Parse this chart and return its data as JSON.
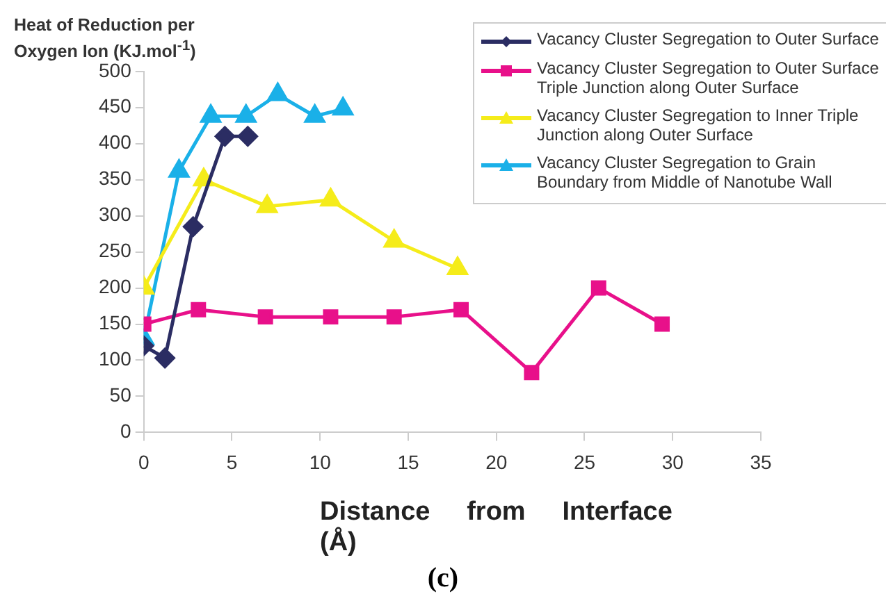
{
  "chart_data": {
    "type": "line",
    "ylabel": "Heat of Reduction per Oxygen  Ion (KJ.mol$^{-1}$)",
    "xlabel": "Distance     from     Interface (Å)",
    "annotations": [
      "(c)"
    ],
    "xlim": [
      0,
      35
    ],
    "xticks": [
      0,
      5,
      10,
      15,
      20,
      25,
      30,
      35
    ],
    "ylim": [
      0,
      500
    ],
    "yticks": [
      0,
      50,
      100,
      150,
      200,
      250,
      300,
      350,
      400,
      450,
      500
    ],
    "grid": false,
    "legend": "top right",
    "line_style": "solid",
    "series": [
      {
        "name": "Vacancy Cluster Segregation to Outer Surface",
        "color": "#2b2d63",
        "marker": "diamond",
        "x": [
          0,
          1.2,
          2.8,
          4.6,
          5.9
        ],
        "values": [
          120,
          103,
          285,
          410,
          410
        ]
      },
      {
        "name": "Vacancy Cluster Segregation to Outer Surface Triple Junction along Outer Surface",
        "color": "#e8108a",
        "marker": "square",
        "x": [
          0,
          3.1,
          6.9,
          10.6,
          14.2,
          18,
          22,
          25.8,
          29.4
        ],
        "values": [
          150,
          170,
          160,
          160,
          160,
          170,
          83,
          200,
          150
        ]
      },
      {
        "name": "Vacancy Cluster Segregation to Inner Triple Junction along Outer Surface",
        "color": "#f5ec1a",
        "marker": "triangle",
        "x": [
          0,
          3.4,
          7,
          10.6,
          14.2,
          17.8
        ],
        "values": [
          200,
          350,
          313,
          322,
          265,
          227
        ]
      },
      {
        "name": "Vacancy Cluster Segregation to Grain Boundary from Middle of Nanotube Wall",
        "color": "#1ab0e8",
        "marker": "triangle",
        "x": [
          0,
          2,
          3.8,
          5.8,
          7.6,
          9.7,
          11.3
        ],
        "values": [
          130,
          362,
          438,
          438,
          468,
          438,
          448
        ]
      }
    ]
  }
}
